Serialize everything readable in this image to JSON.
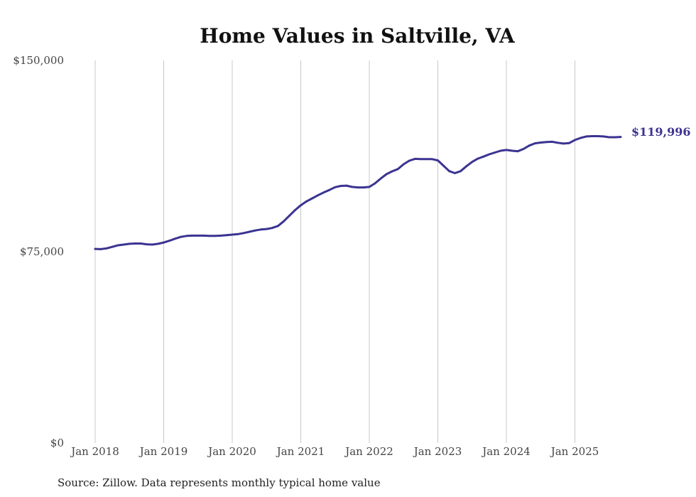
{
  "chart_data": {
    "type": "line",
    "title": "Home Values in Saltville, VA",
    "xlabel": "",
    "ylabel": "",
    "ylim": [
      0,
      150000
    ],
    "grid": "vertical",
    "y_ticks": [
      {
        "value": 0,
        "label": "$0"
      },
      {
        "value": 75000,
        "label": "$75,000"
      },
      {
        "value": 150000,
        "label": "$150,000"
      }
    ],
    "x_ticks": [
      {
        "value": 2018,
        "label": "Jan 2018"
      },
      {
        "value": 2019,
        "label": "Jan 2019"
      },
      {
        "value": 2020,
        "label": "Jan 2020"
      },
      {
        "value": 2021,
        "label": "Jan 2021"
      },
      {
        "value": 2022,
        "label": "Jan 2022"
      },
      {
        "value": 2023,
        "label": "Jan 2023"
      },
      {
        "value": 2024,
        "label": "Jan 2024"
      },
      {
        "value": 2025,
        "label": "Jan 2025"
      }
    ],
    "xlim": [
      2018,
      2025.75
    ],
    "series": [
      {
        "name": "Typical home value",
        "color": "#3b3491",
        "x": [
          2018.0,
          2018.083,
          2018.167,
          2018.25,
          2018.333,
          2018.417,
          2018.5,
          2018.583,
          2018.667,
          2018.75,
          2018.833,
          2018.917,
          2019.0,
          2019.083,
          2019.167,
          2019.25,
          2019.333,
          2019.417,
          2019.5,
          2019.583,
          2019.667,
          2019.75,
          2019.833,
          2019.917,
          2020.0,
          2020.083,
          2020.167,
          2020.25,
          2020.333,
          2020.417,
          2020.5,
          2020.583,
          2020.667,
          2020.75,
          2020.833,
          2020.917,
          2021.0,
          2021.083,
          2021.167,
          2021.25,
          2021.333,
          2021.417,
          2021.5,
          2021.583,
          2021.667,
          2021.75,
          2021.833,
          2021.917,
          2022.0,
          2022.083,
          2022.167,
          2022.25,
          2022.333,
          2022.417,
          2022.5,
          2022.583,
          2022.667,
          2022.75,
          2022.833,
          2022.917,
          2023.0,
          2023.083,
          2023.167,
          2023.25,
          2023.333,
          2023.417,
          2023.5,
          2023.583,
          2023.667,
          2023.75,
          2023.833,
          2023.917,
          2024.0,
          2024.083,
          2024.167,
          2024.25,
          2024.333,
          2024.417,
          2024.5,
          2024.583,
          2024.667,
          2024.75,
          2024.833,
          2024.917,
          2025.0,
          2025.083,
          2025.167,
          2025.25,
          2025.333,
          2025.417,
          2025.5,
          2025.583,
          2025.667
        ],
        "values": [
          76100,
          76000,
          76300,
          76900,
          77500,
          77800,
          78100,
          78200,
          78200,
          77900,
          77800,
          78100,
          78600,
          79300,
          80100,
          80800,
          81200,
          81300,
          81300,
          81300,
          81200,
          81200,
          81300,
          81500,
          81700,
          81900,
          82300,
          82800,
          83300,
          83700,
          83900,
          84300,
          85100,
          86900,
          89100,
          91300,
          93200,
          94700,
          95900,
          97100,
          98200,
          99200,
          100300,
          100800,
          100900,
          100400,
          100200,
          100200,
          100400,
          101800,
          103700,
          105400,
          106500,
          107400,
          109300,
          110700,
          111400,
          111300,
          111300,
          111300,
          110800,
          108700,
          106600,
          105800,
          106600,
          108500,
          110200,
          111500,
          112300,
          113200,
          113900,
          114600,
          114900,
          114600,
          114400,
          115300,
          116600,
          117500,
          117800,
          118000,
          118100,
          117700,
          117400,
          117600,
          118800,
          119600,
          120200,
          120300,
          120300,
          120200,
          119900,
          119900,
          120000
        ]
      }
    ],
    "end_label": "$119,996"
  },
  "footer": {
    "source": "Source: Zillow. Data represents monthly typical home value"
  }
}
